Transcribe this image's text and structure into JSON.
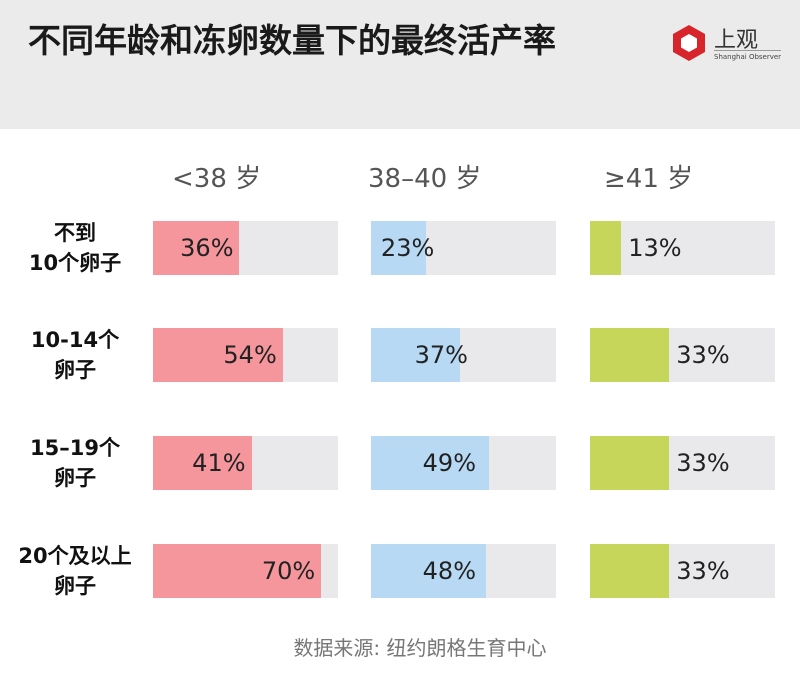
{
  "header": {
    "title": "不同年龄和冻卵数量下的最终活产率",
    "logo_text": "上观",
    "logo_sub": "Shanghai Observer"
  },
  "chart_data": {
    "type": "bar",
    "title": "不同年龄和冻卵数量下的最终活产率",
    "categories": [
      [
        "不到",
        "10个卵子"
      ],
      [
        "10-14个",
        "卵子"
      ],
      [
        "15–19个",
        "卵子"
      ],
      [
        "20个及以上",
        "卵子"
      ]
    ],
    "series": [
      {
        "name": "<38 岁",
        "color": "#f4969b",
        "values": [
          36,
          54,
          41,
          70
        ]
      },
      {
        "name": "38–40 岁",
        "color": "#b7d9f3",
        "values": [
          23,
          37,
          49,
          48
        ]
      },
      {
        "name": "≥41 岁",
        "color": "#c6d65b",
        "values": [
          13,
          33,
          33,
          33
        ]
      }
    ],
    "value_suffix": "%",
    "xlim": [
      0,
      77
    ],
    "track_color": "#e9e9ec"
  },
  "footer": {
    "source": "数据来源: 纽约朗格生育中心"
  }
}
